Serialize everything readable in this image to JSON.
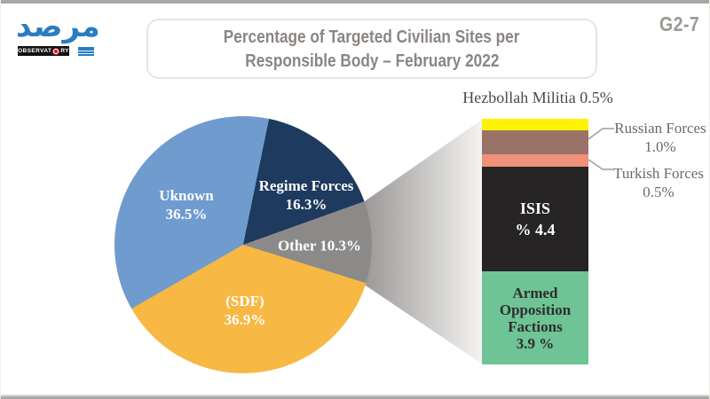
{
  "header": {
    "page_code": "G2-7",
    "title_line1": "Percentage of Targeted Civilian Sites per",
    "title_line2": "Responsible Body – February 2022",
    "logo": {
      "arabic": "مرصد",
      "wordmark_pre": "OBSERVAT",
      "wordmark_post": "RY"
    }
  },
  "chart_data": [
    {
      "type": "pie",
      "title": "Percentage of Targeted Civilian Sites per Responsible Body – February 2022",
      "unit": "percent",
      "start_angle_deg": 11.6,
      "legend": "none",
      "slices": [
        {
          "label": "Regime Forces",
          "value": 16.3,
          "pct_text": "16.3%",
          "color": "#1E3A5F"
        },
        {
          "label": "Other",
          "value": 10.3,
          "combined_text": "Other 10.3%",
          "color": "#8C8A89"
        },
        {
          "label": "(SDF)",
          "value": 36.9,
          "pct_text": "36.9%",
          "color": "#F7B844"
        },
        {
          "label": "Uknown",
          "value": 36.5,
          "pct_text": "36.5%",
          "color": "#6F9BCE"
        }
      ]
    },
    {
      "type": "bar",
      "subtype": "stacked-breakdown-of-other-slice",
      "total_label": "Other 10.3%",
      "total_value": 10.3,
      "segments": [
        {
          "label": "Hezbollah Militia",
          "value": 0.5,
          "display_text": "Hezbollah Militia 0.5%",
          "color": "#FEF104"
        },
        {
          "label": "Russian Forces",
          "value": 1.0,
          "pct_text": "1.0%",
          "color": "#9A7368"
        },
        {
          "label": "Turkish Forces",
          "value": 0.5,
          "pct_text": "0.5%",
          "color": "#EF9079"
        },
        {
          "label": "ISIS",
          "value": 4.4,
          "pct_text": "% 4.4",
          "color": "#272425"
        },
        {
          "label": "Armed Opposition Factions",
          "value": 3.9,
          "pct_text": "3.9 %",
          "color": "#6EC494",
          "display_lines": [
            "Armed",
            "Opposition",
            "Factions"
          ]
        }
      ]
    }
  ]
}
